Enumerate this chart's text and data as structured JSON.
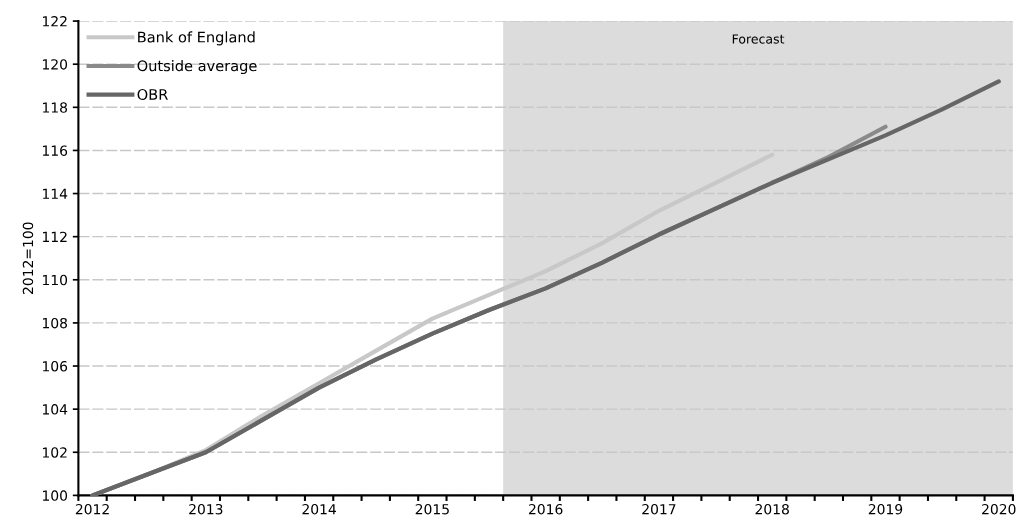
{
  "chart_data": {
    "type": "line",
    "ylabel": "2012=100",
    "x": [
      2012,
      2012.5,
      2013,
      2013.5,
      2014,
      2014.5,
      2015,
      2015.5,
      2016,
      2016.5,
      2017,
      2017.5,
      2018,
      2018.5,
      2019,
      2019.5,
      2020
    ],
    "series": [
      {
        "name": "Bank of England",
        "color": "#c8c8c8",
        "values": [
          100,
          101.0,
          102.1,
          103.7,
          105.2,
          106.7,
          108.2,
          109.3,
          110.4,
          111.7,
          113.2,
          114.5,
          115.8,
          null,
          null,
          null,
          null
        ]
      },
      {
        "name": "Outside average",
        "color": "#8a8a8a",
        "values": [
          100,
          101.0,
          102.0,
          103.5,
          105.0,
          106.3,
          107.5,
          108.6,
          109.6,
          110.8,
          112.1,
          113.3,
          114.5,
          115.7,
          117.1,
          null,
          null
        ]
      },
      {
        "name": "OBR",
        "color": "#666666",
        "values": [
          100,
          101.0,
          102.0,
          103.5,
          105.0,
          106.3,
          107.5,
          108.6,
          109.6,
          110.8,
          112.1,
          113.3,
          114.5,
          115.6,
          116.7,
          117.9,
          119.2
        ]
      }
    ],
    "xlim": [
      2011.875,
      2020.125
    ],
    "xticks": [
      2012,
      2013,
      2014,
      2015,
      2016,
      2017,
      2018,
      2019,
      2020
    ],
    "ylim": [
      100,
      122
    ],
    "yticks": [
      100,
      102,
      104,
      106,
      108,
      110,
      112,
      114,
      116,
      118,
      120,
      122
    ],
    "bands": [
      {
        "axis": "x",
        "from": 2015.625,
        "to": 2020.125,
        "label": "Forecast",
        "color": "#dcdcdc"
      }
    ],
    "grid": "y",
    "legend": "top left",
    "marker": "none",
    "line_style": "solid"
  }
}
